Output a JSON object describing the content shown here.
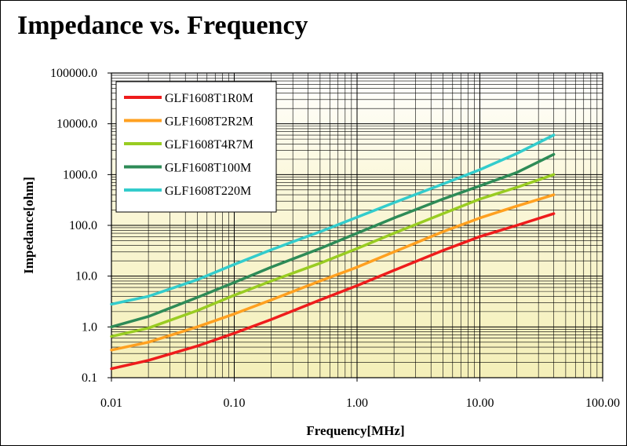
{
  "chart_data": {
    "type": "line",
    "title": "Impedance vs. Frequency",
    "xlabel": "Frequency[MHz]",
    "ylabel": "Impedance[ohm]",
    "x_scale": "log",
    "y_scale": "log",
    "xlim": [
      0.01,
      100
    ],
    "ylim": [
      0.1,
      100000
    ],
    "x_ticks": [
      "0.01",
      "0.10",
      "1.00",
      "10.00",
      "100.00"
    ],
    "y_ticks": [
      "0.1",
      "1.0",
      "10.0",
      "100.0",
      "1000.0",
      "10000.0",
      "100000.0"
    ],
    "grid": true,
    "legend_position": "top-left",
    "series": [
      {
        "name": "GLF1608T1R0M",
        "color": "#ee1c1c",
        "x": [
          0.01,
          0.02,
          0.05,
          0.1,
          0.2,
          0.5,
          1,
          2,
          5,
          10,
          20,
          40
        ],
        "y": [
          0.15,
          0.22,
          0.42,
          0.75,
          1.4,
          3.4,
          6.5,
          13,
          32,
          60,
          100,
          170
        ]
      },
      {
        "name": "GLF1608T2R2M",
        "color": "#ffa020",
        "x": [
          0.01,
          0.02,
          0.05,
          0.1,
          0.2,
          0.5,
          1,
          2,
          5,
          10,
          20,
          40
        ],
        "y": [
          0.35,
          0.5,
          1.0,
          1.8,
          3.4,
          8,
          15,
          30,
          75,
          140,
          240,
          400
        ]
      },
      {
        "name": "GLF1608T4R7M",
        "color": "#99cc22",
        "x": [
          0.01,
          0.02,
          0.05,
          0.1,
          0.2,
          0.5,
          1,
          2,
          5,
          10,
          20,
          40
        ],
        "y": [
          0.65,
          0.95,
          2.1,
          4.2,
          8,
          18,
          35,
          70,
          170,
          330,
          560,
          1000
        ]
      },
      {
        "name": "GLF1608T100M",
        "color": "#2e8b57",
        "x": [
          0.01,
          0.02,
          0.05,
          0.1,
          0.2,
          0.5,
          1,
          2,
          5,
          10,
          20,
          40
        ],
        "y": [
          1.0,
          1.6,
          3.8,
          7.5,
          15,
          35,
          70,
          140,
          330,
          600,
          1100,
          2500
        ]
      },
      {
        "name": "GLF1608T220M",
        "color": "#33cccc",
        "x": [
          0.01,
          0.02,
          0.05,
          0.1,
          0.2,
          0.5,
          1,
          2,
          5,
          10,
          20,
          40
        ],
        "y": [
          2.8,
          4.0,
          8.5,
          17,
          33,
          75,
          145,
          280,
          650,
          1250,
          2600,
          6000
        ]
      }
    ]
  }
}
